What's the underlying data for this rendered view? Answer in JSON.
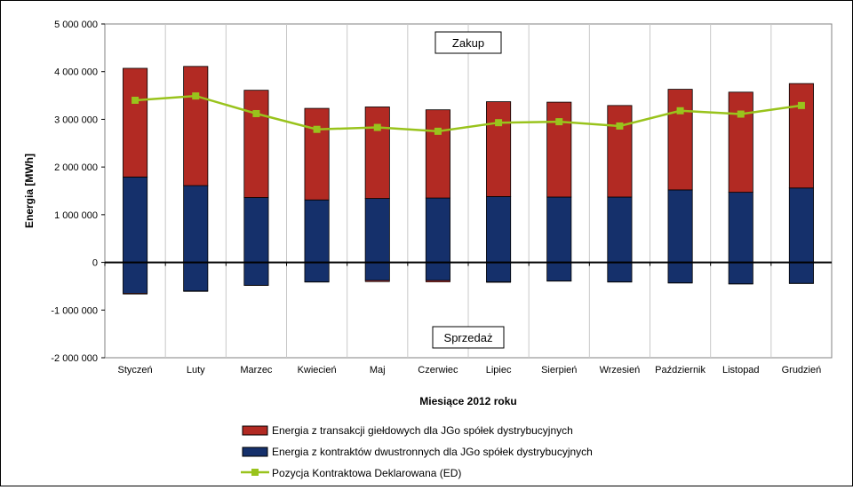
{
  "chart_data": {
    "type": "bar",
    "stacked": true,
    "xlabel": "Miesiące 2012 roku",
    "ylabel": "Energia [MWh]",
    "ylim": [
      -2000000,
      5000000
    ],
    "yticks": [
      5000000,
      4000000,
      3000000,
      2000000,
      1000000,
      0,
      -1000000,
      -2000000
    ],
    "ytick_labels": [
      "5 000 000",
      "4 000 000",
      "3 000 000",
      "2 000 000",
      "1 000 000",
      "0",
      "-1 000 000",
      "-2 000 000"
    ],
    "grid": "vertical",
    "legend_position": "bottom",
    "categories": [
      "Styczeń",
      "Luty",
      "Marzec",
      "Kwiecień",
      "Maj",
      "Czerwiec",
      "Lipiec",
      "Sierpień",
      "Wrzesień",
      "Październik",
      "Listopad",
      "Grudzień"
    ],
    "series": [
      {
        "name": "Energia z transakcji giełdowych dla JGo spółek dystrybucyjnych",
        "color": "#b22a23",
        "kind": "bar",
        "positive": [
          2280000,
          2500000,
          2250000,
          1920000,
          1920000,
          1850000,
          1990000,
          1990000,
          1920000,
          2110000,
          2100000,
          2190000
        ],
        "negative": [
          -15000,
          -10000,
          -5000,
          -5000,
          -25000,
          -30000,
          -10000,
          -5000,
          -5000,
          -5000,
          -5000,
          -5000
        ]
      },
      {
        "name": "Energia z kontraktów dwustronnych dla JGo spółek dystrybucyjnych",
        "color": "#15306b",
        "kind": "bar",
        "positive": [
          1790000,
          1610000,
          1360000,
          1310000,
          1340000,
          1350000,
          1380000,
          1370000,
          1370000,
          1520000,
          1470000,
          1560000
        ],
        "negative": [
          -650000,
          -600000,
          -480000,
          -410000,
          -380000,
          -380000,
          -410000,
          -390000,
          -410000,
          -430000,
          -450000,
          -440000
        ]
      },
      {
        "name": "Pozycja Kontraktowa Deklarowana (ED)",
        "color": "#99c31c",
        "kind": "line",
        "values": [
          3400000,
          3490000,
          3120000,
          2790000,
          2830000,
          2750000,
          2930000,
          2950000,
          2860000,
          3180000,
          3110000,
          3290000
        ]
      }
    ],
    "annotations": [
      "Zakup",
      "Sprzedaż"
    ]
  }
}
